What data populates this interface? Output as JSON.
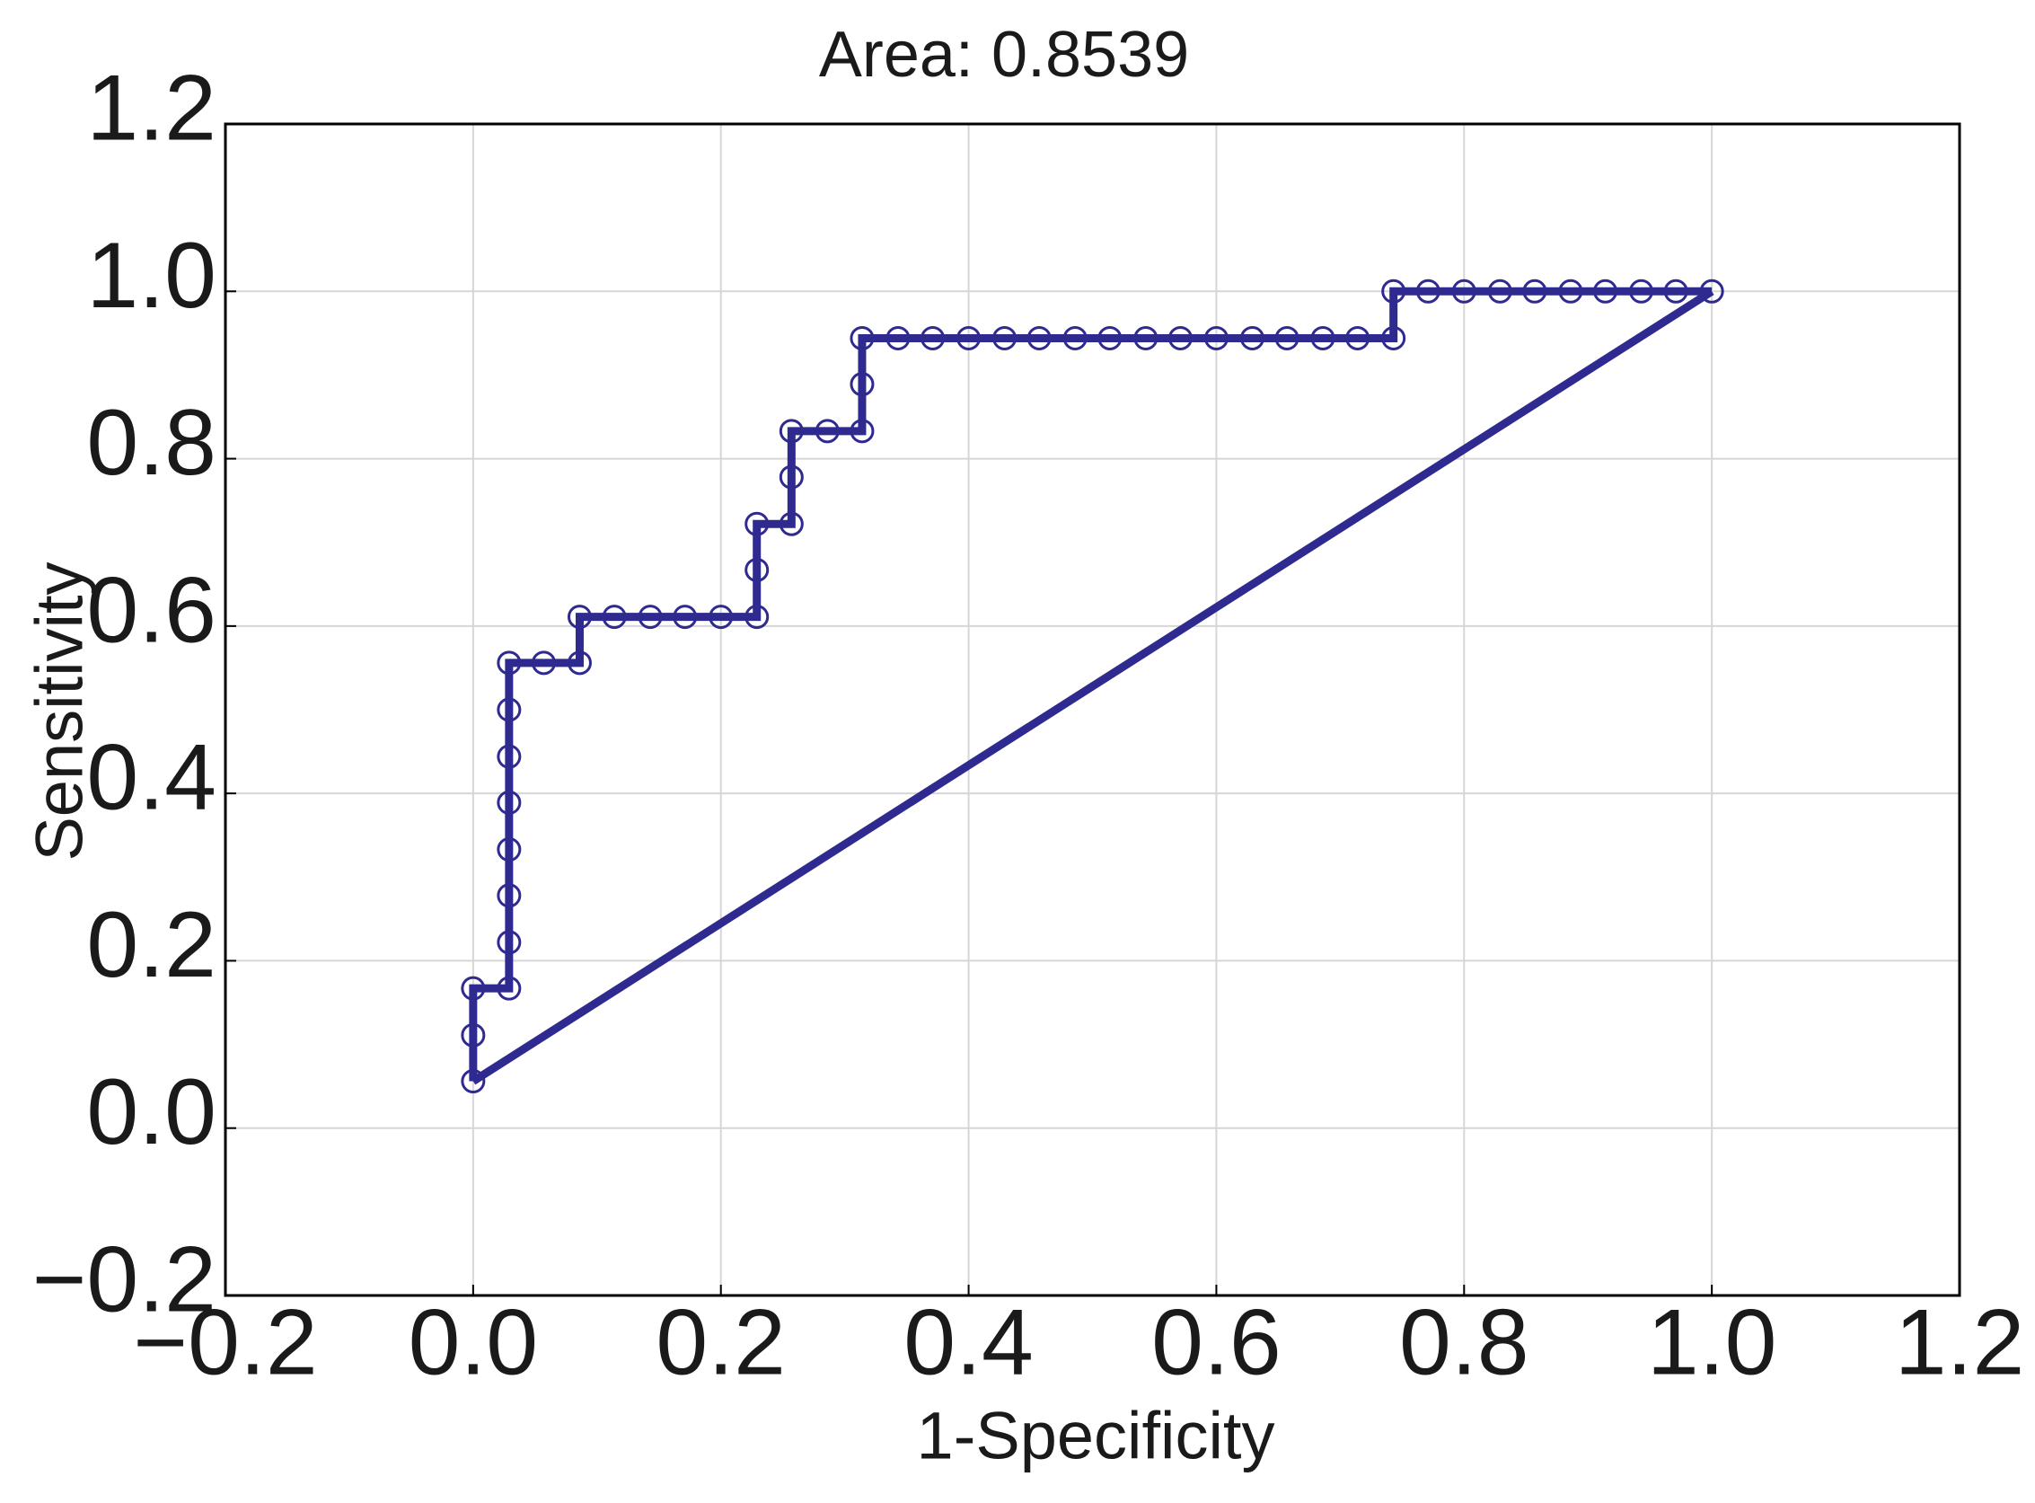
{
  "chart_data": {
    "type": "line",
    "title": "Area: 0.8539",
    "x_label": "1-Specificity",
    "y_label": "Sensitivity",
    "xlim": [
      -0.2,
      1.2
    ],
    "ylim": [
      -0.2,
      1.2
    ],
    "xticks": [
      {
        "value": -0.2,
        "label": "−0.2"
      },
      {
        "value": 0,
        "label": "0.0"
      },
      0.2,
      0.4,
      0.6,
      0.8,
      {
        "value": 1,
        "label": "1.0"
      },
      1.2
    ],
    "yticks": [
      {
        "value": -0.2,
        "label": "−0.2"
      },
      {
        "value": 0,
        "label": "0.0"
      },
      0.2,
      0.4,
      0.6,
      0.8,
      {
        "value": 1,
        "label": "1.0"
      },
      1.2
    ],
    "grid": true,
    "series": [
      {
        "color": "#2f2a8f",
        "markers": true,
        "x": [
          0,
          0,
          0,
          0.029,
          0.029,
          0.029,
          0.029,
          0.029,
          0.029,
          0.029,
          0.029,
          0.057,
          0.086,
          0.086,
          0.114,
          0.143,
          0.171,
          0.2,
          0.229,
          0.229,
          0.229,
          0.257,
          0.257,
          0.257,
          0.286,
          0.314,
          0.314,
          0.314,
          0.343,
          0.371,
          0.4,
          0.429,
          0.457,
          0.486,
          0.514,
          0.543,
          0.571,
          0.6,
          0.629,
          0.657,
          0.686,
          0.714,
          0.743,
          0.743,
          0.771,
          0.8,
          0.829,
          0.857,
          0.886,
          0.914,
          0.943,
          0.971,
          1
        ],
        "y": [
          0.056,
          0.111,
          0.167,
          0.167,
          0.222,
          0.278,
          0.333,
          0.389,
          0.444,
          0.5,
          0.556,
          0.556,
          0.556,
          0.611,
          0.611,
          0.611,
          0.611,
          0.611,
          0.611,
          0.667,
          0.722,
          0.722,
          0.778,
          0.833,
          0.833,
          0.833,
          0.889,
          0.944,
          0.944,
          0.944,
          0.944,
          0.944,
          0.944,
          0.944,
          0.944,
          0.944,
          0.944,
          0.944,
          0.944,
          0.944,
          0.944,
          0.944,
          0.944,
          1,
          1,
          1,
          1,
          1,
          1,
          1,
          1,
          1,
          1
        ]
      },
      {
        "color": "#2f2a8f",
        "markers": false,
        "x": [
          0,
          1
        ],
        "y": [
          0.056,
          1
        ]
      }
    ]
  }
}
